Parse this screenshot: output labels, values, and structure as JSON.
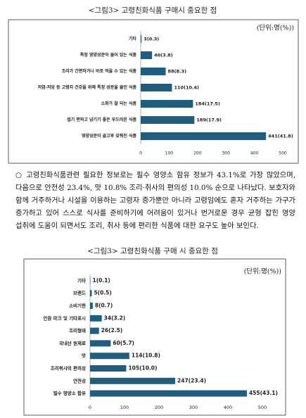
{
  "chart_data": [
    {
      "type": "barh",
      "title": "<그림3> 고령친화식품 구매시 중요한 점",
      "subtitle": "(단위:명(%))",
      "categories": [
        "기타",
        "특정 영양성분이 들어 있는 식품",
        "조리가 간편하거나 바로 먹을 수 있는 식품",
        "저염·저당 등 고령자 건강을 위해 특정 성분을 줄인 식품",
        "소화가 잘 되는 식품",
        "씹기 편하고 넘기기 좋은 부드러운 식품",
        "영양성분이 골고루 갖춰진 식품"
      ],
      "values": [
        3,
        40,
        88,
        110,
        184,
        189,
        441
      ],
      "value_labels": [
        "3(0.3)",
        "40(3.8)",
        "88(8.3)",
        "110(10.4)",
        "184(17.5)",
        "189(17.9)",
        "441(41.8)"
      ],
      "color": "#215d7f",
      "xlim": [
        0,
        500
      ],
      "xticks": [
        0,
        100,
        200,
        300,
        400,
        500
      ]
    },
    {
      "type": "barh",
      "title": "<그림3> 고령친화식품 구매 시 중요한 점",
      "subtitle": "(단위:명(%))",
      "categories": [
        "기타",
        "브랜드",
        "소비기한",
        "인증 마크 및 기타표시",
        "조리형태",
        "국내산 원재료",
        "맛",
        "조리취사의 편의성",
        "안전성",
        "필수 영양소 함유"
      ],
      "values": [
        1,
        5,
        8,
        34,
        26,
        60,
        114,
        105,
        247,
        455
      ],
      "value_labels": [
        "1(0.1)",
        "5(0.5)",
        "8(0.7)",
        "34(3.2)",
        "26(2.5)",
        "60(5.7)",
        "114(10.8)",
        "105(10.0)",
        "247(23.4)",
        "455(43.1)"
      ],
      "color": "#215d7f",
      "xlim": [
        0,
        500
      ],
      "xticks": [
        0,
        100,
        200,
        300,
        400,
        500
      ]
    }
  ],
  "paragraph": "○ 고령친화식품관련 필요한 정보로는 필수 영양소 함유 정보가 43.1%로 가장 많았으며, 다음으로 안전성 23.4%, 맛 10.8% 조리·취사의 편의성 10.0% 순으로 나타났다. 보호자와 함께 거주하거나 시설을 이용하는 고령자 증가뿐만 아니라 고령임에도 혼자 거주하는 가구가 증가하고 있어 스스로 식사를 준비하기에 어려움이 있거나 번거로운 경우 균형 잡힌 영양 섭취에 도움이 되면서도 조리, 취사 등에 편리한 식품에 대한 요구도 높아 보인다."
}
